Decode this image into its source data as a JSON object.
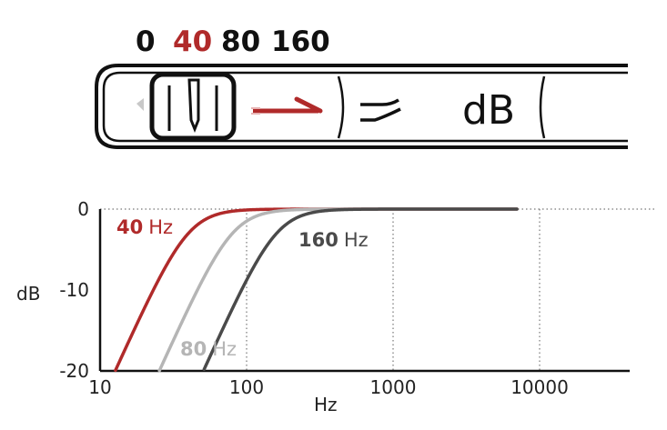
{
  "switch": {
    "positions": [
      "0",
      "40",
      "80",
      "160"
    ],
    "selected": "40",
    "unit_label": "dB",
    "icons": [
      "knob-icon",
      "arrow-right-icon",
      "highpass-filter-icon"
    ]
  },
  "colors": {
    "accent": "#b02a2a",
    "curve_80": "#b5b5b5",
    "curve_160": "#4a4a4a",
    "ink": "#111111"
  },
  "chart_data": {
    "type": "line",
    "xscale": "log",
    "xlabel": "Hz",
    "ylabel": "dB",
    "xlim": [
      10,
      7000
    ],
    "ylim": [
      -20,
      0
    ],
    "x_ticks": [
      "10",
      "100",
      "1000",
      "10000"
    ],
    "y_ticks": [
      "0",
      "-10",
      "-20"
    ],
    "grid": "vertical dotted at 100, 1000, 10000 and horizontal dotted at 0",
    "series": [
      {
        "name": "40 Hz",
        "label_num": "40",
        "label_unit": "Hz",
        "fc": 40,
        "color": "#b02a2a"
      },
      {
        "name": "80 Hz",
        "label_num": "80",
        "label_unit": "Hz",
        "fc": 80,
        "color": "#b5b5b5"
      },
      {
        "name": "160 Hz",
        "label_num": "160",
        "label_unit": "Hz",
        "fc": 160,
        "color": "#4a4a4a"
      }
    ]
  }
}
